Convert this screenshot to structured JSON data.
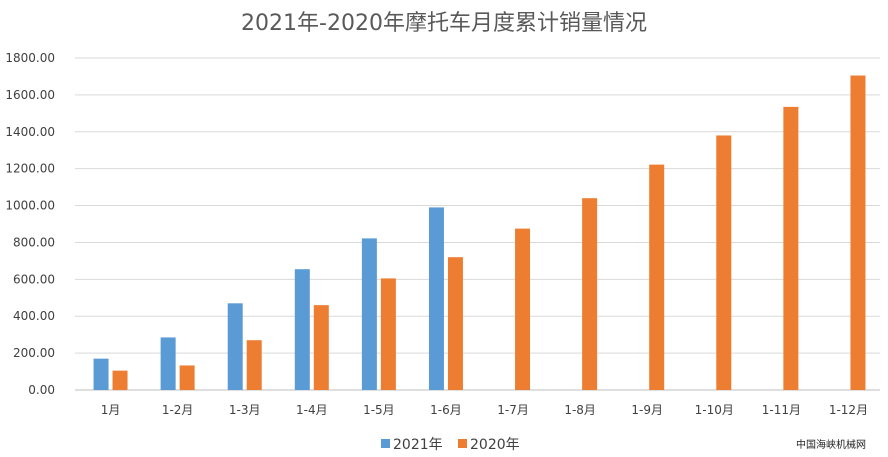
{
  "chart_data": {
    "type": "bar",
    "title": "2021年-2020年摩托车月度累计销量情况",
    "categories": [
      "1月",
      "1-2月",
      "1-3月",
      "1-4月",
      "1-5月",
      "1-6月",
      "1-7月",
      "1-8月",
      "1-9月",
      "1-10月",
      "1-11月",
      "1-12月"
    ],
    "yticks": [
      "0.00",
      "200.00",
      "400.00",
      "600.00",
      "800.00",
      "1000.00",
      "1200.00",
      "1400.00",
      "1600.00",
      "1800.00"
    ],
    "ylim": [
      0,
      1800
    ],
    "grid": true,
    "legend_position": "bottom",
    "series": [
      {
        "name": "2021年",
        "color": "#5B9BD5",
        "values": [
          170,
          285,
          470,
          655,
          822,
          990,
          null,
          null,
          null,
          null,
          null,
          null
        ]
      },
      {
        "name": "2020年",
        "color": "#ED7D31",
        "values": [
          105,
          133,
          270,
          460,
          605,
          720,
          875,
          1040,
          1222,
          1380,
          1535,
          1705
        ]
      }
    ]
  },
  "watermark": "中国海峡机械网"
}
